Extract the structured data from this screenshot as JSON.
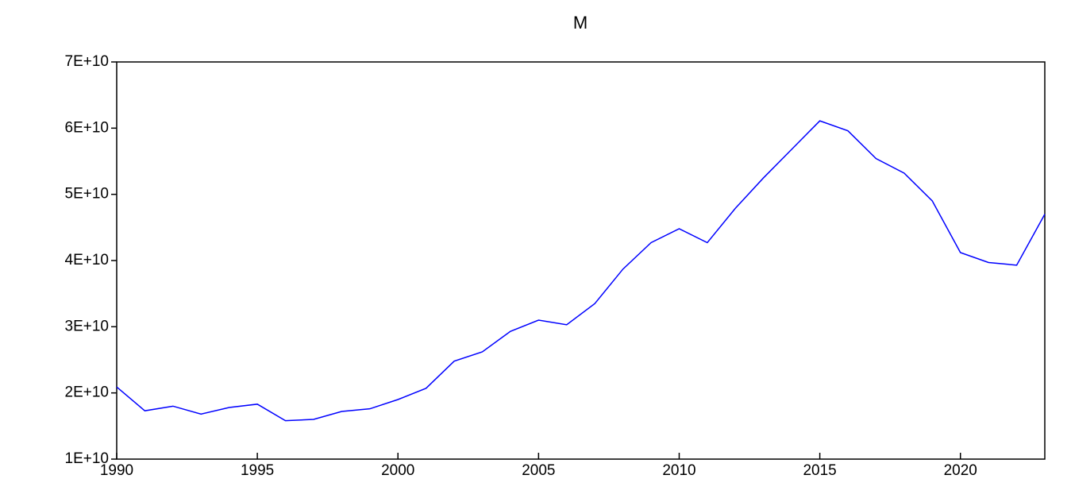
{
  "chart_data": {
    "type": "line",
    "title": "M",
    "color": "#0000ff",
    "x": [
      1990,
      1991,
      1992,
      1993,
      1994,
      1995,
      1996,
      1997,
      1998,
      1999,
      2000,
      2001,
      2002,
      2003,
      2004,
      2005,
      2006,
      2007,
      2008,
      2009,
      2010,
      2011,
      2012,
      2013,
      2014,
      2015,
      2016,
      2017,
      2018,
      2019,
      2020,
      2021,
      2022,
      2023
    ],
    "values": [
      20900000000,
      17300000000,
      18000000000,
      16800000000,
      17800000000,
      18300000000,
      15800000000,
      16000000000,
      17200000000,
      17600000000,
      19000000000,
      20700000000,
      24800000000,
      26200000000,
      29300000000,
      31000000000,
      30300000000,
      33500000000,
      38700000000,
      42700000000,
      44800000000,
      42700000000,
      47900000000,
      52500000000,
      56800000000,
      61100000000,
      59600000000,
      55400000000,
      53200000000,
      49000000000,
      41200000000,
      39700000000,
      39300000000,
      47000000000
    ],
    "xlim": [
      1990,
      2023
    ],
    "xticks": [
      1990,
      1995,
      2000,
      2005,
      2010,
      2015,
      2020
    ],
    "ylim": [
      10000000000,
      70000000000
    ],
    "yticks": [
      {
        "value": 10000000000,
        "label": "1E+10"
      },
      {
        "value": 20000000000,
        "label": "2E+10"
      },
      {
        "value": 30000000000,
        "label": "3E+10"
      },
      {
        "value": 40000000000,
        "label": "4E+10"
      },
      {
        "value": 50000000000,
        "label": "5E+10"
      },
      {
        "value": 60000000000,
        "label": "6E+10"
      },
      {
        "value": 70000000000,
        "label": "7E+10"
      }
    ]
  }
}
